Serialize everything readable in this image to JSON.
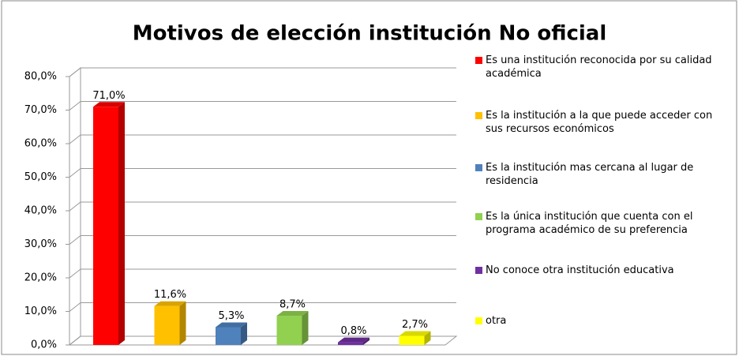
{
  "chart_data": {
    "type": "bar3d",
    "title": "Motivos de elección institución No oficial",
    "categories": [
      "Es una institución reconocida por su calidad académica",
      "Es la institución  a la que puede acceder con sus recursos económicos",
      "Es la institución mas cercana al lugar de residencia",
      "Es la única institución que cuenta con el programa académico de su preferencia",
      "No conoce otra institución educativa",
      "otra"
    ],
    "values": [
      71.0,
      11.6,
      5.3,
      8.7,
      0.8,
      2.7
    ],
    "value_labels": [
      "71,0%",
      "11,6%",
      "5,3%",
      "8,7%",
      "0,8%",
      "2,7%"
    ],
    "colors": [
      "#ff0000",
      "#ffc000",
      "#4f81bd",
      "#92d050",
      "#7030a0",
      "#ffff00"
    ],
    "ylim": [
      0,
      80
    ],
    "yticks": [
      {
        "value": 0,
        "label": "0,0%"
      },
      {
        "value": 10,
        "label": "10,0%"
      },
      {
        "value": 20,
        "label": "20,0%"
      },
      {
        "value": 30,
        "label": "30,0%"
      },
      {
        "value": 40,
        "label": "40,0%"
      },
      {
        "value": 50,
        "label": "50,0%"
      },
      {
        "value": 60,
        "label": "60,0%"
      },
      {
        "value": 70,
        "label": "70,0%"
      },
      {
        "value": 80,
        "label": "80,0%"
      }
    ],
    "grid": true
  }
}
